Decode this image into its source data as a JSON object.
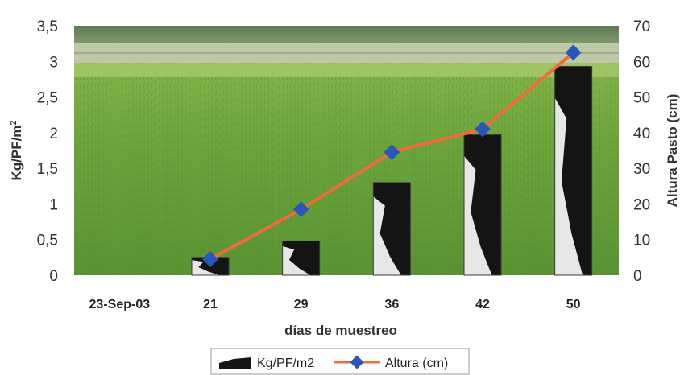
{
  "chart_data": {
    "type": "bar+line",
    "categories": [
      "23-Sep-03",
      "21",
      "29",
      "36",
      "42",
      "50"
    ],
    "xlabel": "días de muestreo",
    "ylabel_left": "Kg/PF/m²",
    "ylabel_right": "Altura Pasto (cm)",
    "ylim_left": [
      0,
      3.5
    ],
    "ylim_right": [
      0,
      70
    ],
    "yticks_left": [
      "0",
      "0,5",
      "1",
      "1,5",
      "2",
      "2,5",
      "3",
      "3,5"
    ],
    "yticks_right": [
      "0",
      "10",
      "20",
      "30",
      "40",
      "50",
      "60",
      "70"
    ],
    "series": [
      {
        "name": "Kg/PF/m2",
        "type": "bar",
        "axis": "left",
        "values": [
          null,
          0.25,
          0.48,
          1.3,
          1.97,
          2.93
        ]
      },
      {
        "name": "Altura (cm)",
        "type": "line",
        "axis": "right",
        "values": [
          null,
          4.5,
          18.5,
          34.5,
          41,
          62.5
        ]
      }
    ],
    "legend_position": "bottom-center",
    "line_color": "#f26b3a",
    "marker_color": "#2a56b8",
    "grid": false,
    "background": "grass-pasture-photo"
  }
}
